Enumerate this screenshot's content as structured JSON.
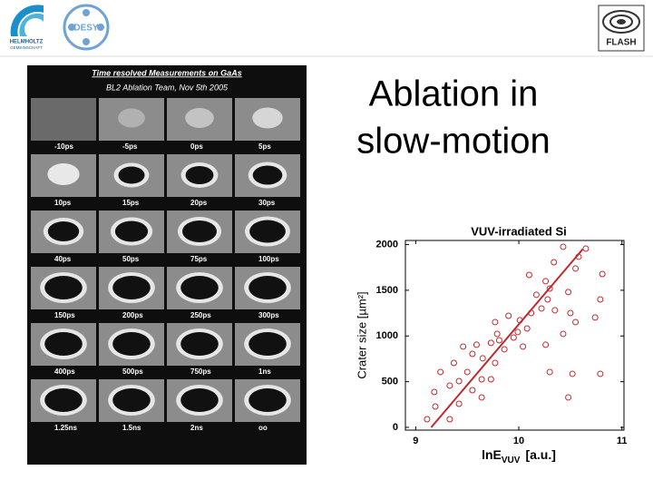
{
  "header": {
    "logos": [
      "HELMHOLTZ",
      "GEMEINSCHAFT",
      "DESY",
      "FLASH"
    ]
  },
  "slide": {
    "title_lines": [
      "Ablation in",
      "slow-motion"
    ]
  },
  "gallery": {
    "title": "Time resolved Measurements on GaAs",
    "subtitle": "BL2 Ablation Team, Nov 5th 2005",
    "frames": [
      "-10ps",
      "-5ps",
      "0ps",
      "5ps",
      "10ps",
      "15ps",
      "20ps",
      "30ps",
      "40ps",
      "50ps",
      "75ps",
      "100ps",
      "150ps",
      "200ps",
      "250ps",
      "300ps",
      "400ps",
      "500ps",
      "750ps",
      "1ns",
      "1.25ns",
      "1.5ns",
      "2ns",
      "oo"
    ]
  },
  "chart_data": {
    "type": "scatter",
    "title": "VUV-irradiated Si",
    "y_label": "Crater size [µm²]",
    "x_label": {
      "main": "lnE",
      "sub": "VUV",
      "unit": "[a.u.]"
    },
    "xlim": [
      8.9,
      11.02
    ],
    "ylim": [
      -30,
      2045
    ],
    "xticks": [
      9,
      10,
      11
    ],
    "yticks": [
      0,
      500,
      1000,
      1500,
      2000
    ],
    "color": "#c0282d",
    "x": [
      10.43,
      10.65,
      10.58,
      10.34,
      10.1,
      10.26,
      10.81,
      10.55,
      10.3,
      10.17,
      10.48,
      10.22,
      10.12,
      10.35,
      10.01,
      9.9,
      9.77,
      10.5,
      10.74,
      10.55,
      10.43,
      10.26,
      9.81,
      9.95,
      9.86,
      9.73,
      9.59,
      9.46,
      9.55,
      9.65,
      9.77,
      9.37,
      9.24,
      9.5,
      9.64,
      9.42,
      9.33,
      9.18,
      9.55,
      10.3,
      10.04,
      9.73,
      10.79,
      10.52,
      10.48,
      9.42,
      9.64,
      9.11,
      9.33,
      9.19,
      9.99,
      10.08,
      9.79,
      10.79,
      10.28
    ],
    "values": [
      1976,
      1956,
      1867,
      1807,
      1668,
      1599,
      1678,
      1738,
      1519,
      1450,
      1480,
      1301,
      1251,
      1281,
      1172,
      1221,
      1152,
      1251,
      1202,
      1152,
      1023,
      904,
      953,
      983,
      854,
      924,
      904,
      884,
      804,
      755,
      705,
      705,
      606,
      606,
      526,
      506,
      457,
      387,
      407,
      606,
      884,
      526,
      586,
      586,
      328,
      258,
      328,
      89,
      89,
      228,
      1043,
      1082,
      1023,
      1400,
      1400
    ],
    "fit": {
      "x": [
        9.15,
        10.62
      ],
      "y": [
        0,
        1950
      ]
    }
  }
}
